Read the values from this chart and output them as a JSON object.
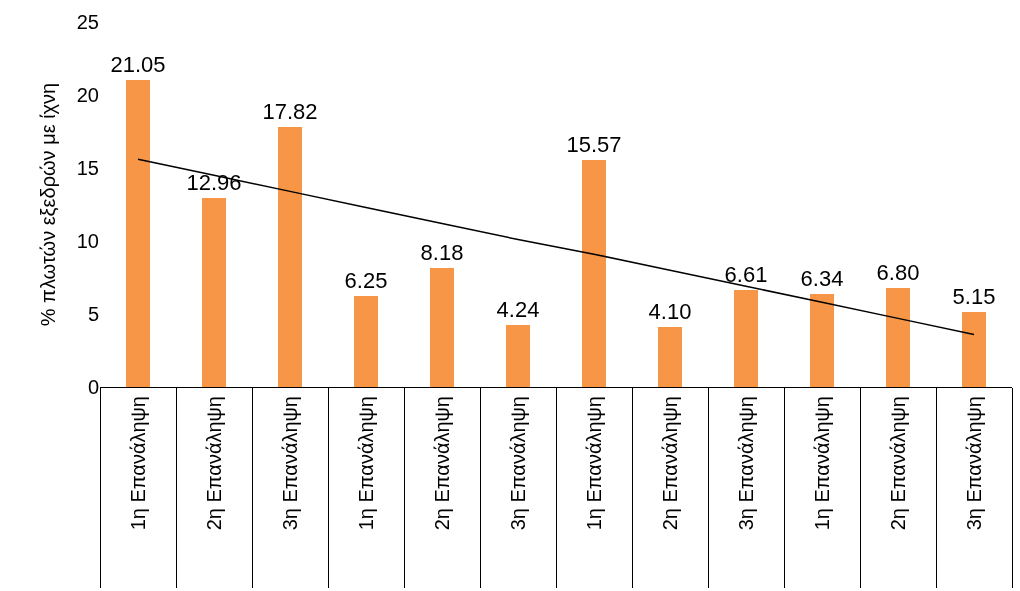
{
  "chart_data": {
    "type": "bar",
    "ylabel": "% πλωτών εξεδρών με ίχνη",
    "categories": [
      "1η Επανάληψη",
      "2η Επανάληψη",
      "3η Επανάληψη",
      "1η Επανάληψη",
      "2η Επανάληψη",
      "3η Επανάληψη",
      "1η Επανάληψη",
      "2η Επανάληψη",
      "3η Επανάληψη",
      "1η Επανάληψη",
      "2η Επανάληψη",
      "3η Επανάληψη"
    ],
    "series": [
      {
        "color": "#f79646",
        "values": [
          21.05,
          12.96,
          17.82,
          6.25,
          8.18,
          4.24,
          15.57,
          4.1,
          6.61,
          6.34,
          6.8,
          5.15
        ],
        "value_labels": [
          "21.05",
          "12.96",
          "17.82",
          "6.25",
          "8.18",
          "4.24",
          "15.57",
          "4.10",
          "6.61",
          "6.34",
          "6.80",
          "5.15"
        ]
      },
      {
        "type": "line",
        "color": "#000000",
        "marker": "none",
        "values": [
          15.6,
          14.5,
          13.4,
          12.3,
          11.2,
          10.1,
          9.1,
          8.0,
          6.9,
          5.8,
          4.7,
          3.6
        ]
      }
    ],
    "ylim": [
      0,
      25
    ],
    "yticks": [
      0,
      5,
      10,
      15,
      20,
      25
    ]
  }
}
